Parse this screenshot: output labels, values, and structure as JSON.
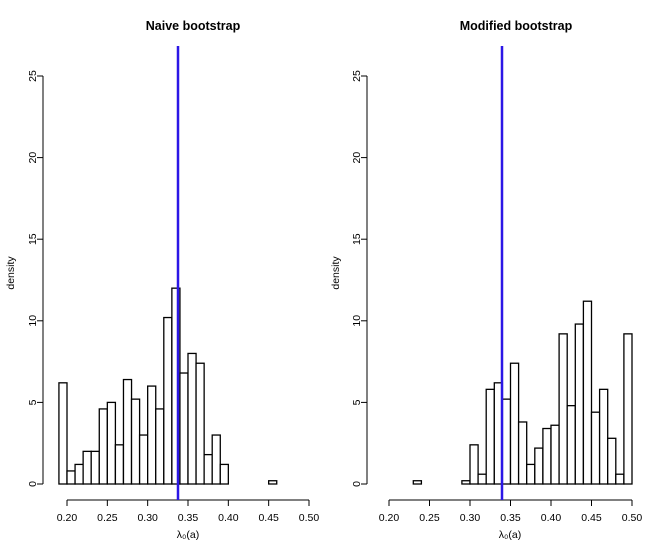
{
  "chart_data": [
    {
      "type": "bar",
      "title": "Naive bootstrap",
      "xlabel": "λ₀(a)",
      "ylabel": "density",
      "xlim": [
        0.2,
        0.5
      ],
      "ylim": [
        0,
        25
      ],
      "x_ticks": [
        "0.20",
        "0.25",
        "0.30",
        "0.35",
        "0.40",
        "0.45",
        "0.50"
      ],
      "y_ticks": [
        "0",
        "5",
        "10",
        "15",
        "20",
        "25"
      ],
      "bin_width": 0.01,
      "bin_lefts": [
        0.19,
        0.2,
        0.21,
        0.22,
        0.23,
        0.24,
        0.25,
        0.26,
        0.27,
        0.28,
        0.29,
        0.3,
        0.31,
        0.32,
        0.33,
        0.34,
        0.35,
        0.36,
        0.37,
        0.38,
        0.39,
        0.4,
        0.41,
        0.42,
        0.43,
        0.44,
        0.45
      ],
      "values": [
        6.2,
        0.8,
        1.2,
        2.0,
        2.0,
        4.6,
        5.0,
        2.4,
        6.4,
        5.2,
        3.0,
        6.0,
        4.6,
        10.2,
        12.0,
        6.8,
        8.0,
        7.4,
        1.8,
        3.0,
        1.2,
        0.0,
        0.0,
        0.0,
        0.0,
        0.0,
        0.2
      ],
      "reference_line_x": 0.34,
      "reference_line_color": "#2b17e6"
    },
    {
      "type": "bar",
      "title": "Modified bootstrap",
      "xlabel": "λ₀(a)",
      "ylabel": "density",
      "xlim": [
        0.2,
        0.5
      ],
      "ylim": [
        0,
        25
      ],
      "x_ticks": [
        "0.20",
        "0.25",
        "0.30",
        "0.35",
        "0.40",
        "0.45",
        "0.50"
      ],
      "y_ticks": [
        "0",
        "5",
        "10",
        "15",
        "20",
        "25"
      ],
      "bin_width": 0.01,
      "bin_lefts": [
        0.23,
        0.24,
        0.25,
        0.26,
        0.27,
        0.28,
        0.29,
        0.3,
        0.31,
        0.32,
        0.33,
        0.34,
        0.35,
        0.36,
        0.37,
        0.38,
        0.39,
        0.4,
        0.41,
        0.42,
        0.43,
        0.44,
        0.45,
        0.46,
        0.47,
        0.48,
        0.49
      ],
      "values": [
        0.2,
        0.0,
        0.0,
        0.0,
        0.0,
        0.0,
        0.2,
        2.4,
        0.6,
        5.8,
        6.2,
        5.2,
        7.4,
        3.8,
        1.2,
        2.2,
        3.4,
        3.6,
        9.2,
        4.8,
        9.8,
        11.2,
        4.4,
        5.8,
        2.8,
        0.6,
        9.2
      ],
      "reference_line_x": 0.34,
      "reference_line_color": "#2b17e6"
    }
  ]
}
